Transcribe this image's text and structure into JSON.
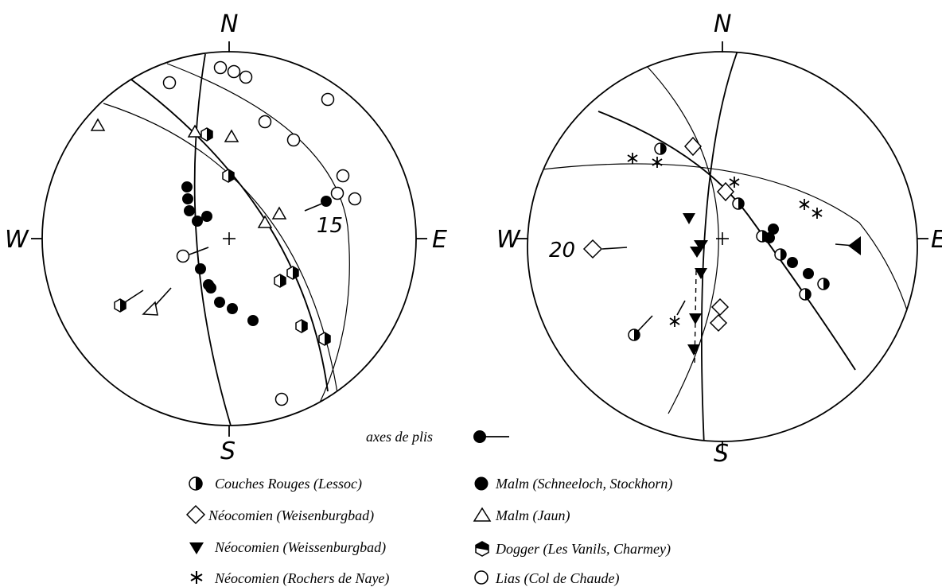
{
  "left_net": {
    "north": "N",
    "south": "S",
    "east": "E",
    "west": "W",
    "annotation": "15"
  },
  "right_net": {
    "north": "N",
    "south": "S",
    "east": "E",
    "west": "W",
    "annotation": "20"
  },
  "fold_axes_label": "axes de plis",
  "legend": [
    {
      "symbol": "half-circle",
      "label": "Couches Rouges (Lessoc)"
    },
    {
      "symbol": "open-diamond",
      "label": "Néocomien (Weisenburgbad)"
    },
    {
      "symbol": "filled-triangle",
      "label": "Néocomien (Weissenburgbad)"
    },
    {
      "symbol": "asterisk",
      "label": "Néocomien (Rochers de Naye)"
    },
    {
      "symbol": "filled-circle",
      "label": "Malm (Schneeloch, Stockhorn)"
    },
    {
      "symbol": "open-triangle",
      "label": "Malm (Jaun)"
    },
    {
      "symbol": "hexagon-half",
      "label": "Dogger (Les Vanils, Charmey)"
    },
    {
      "symbol": "open-circle",
      "label": "Lias (Col de Chaude)"
    }
  ],
  "colors": {
    "ink": "#000000",
    "background": "#ffffff"
  }
}
